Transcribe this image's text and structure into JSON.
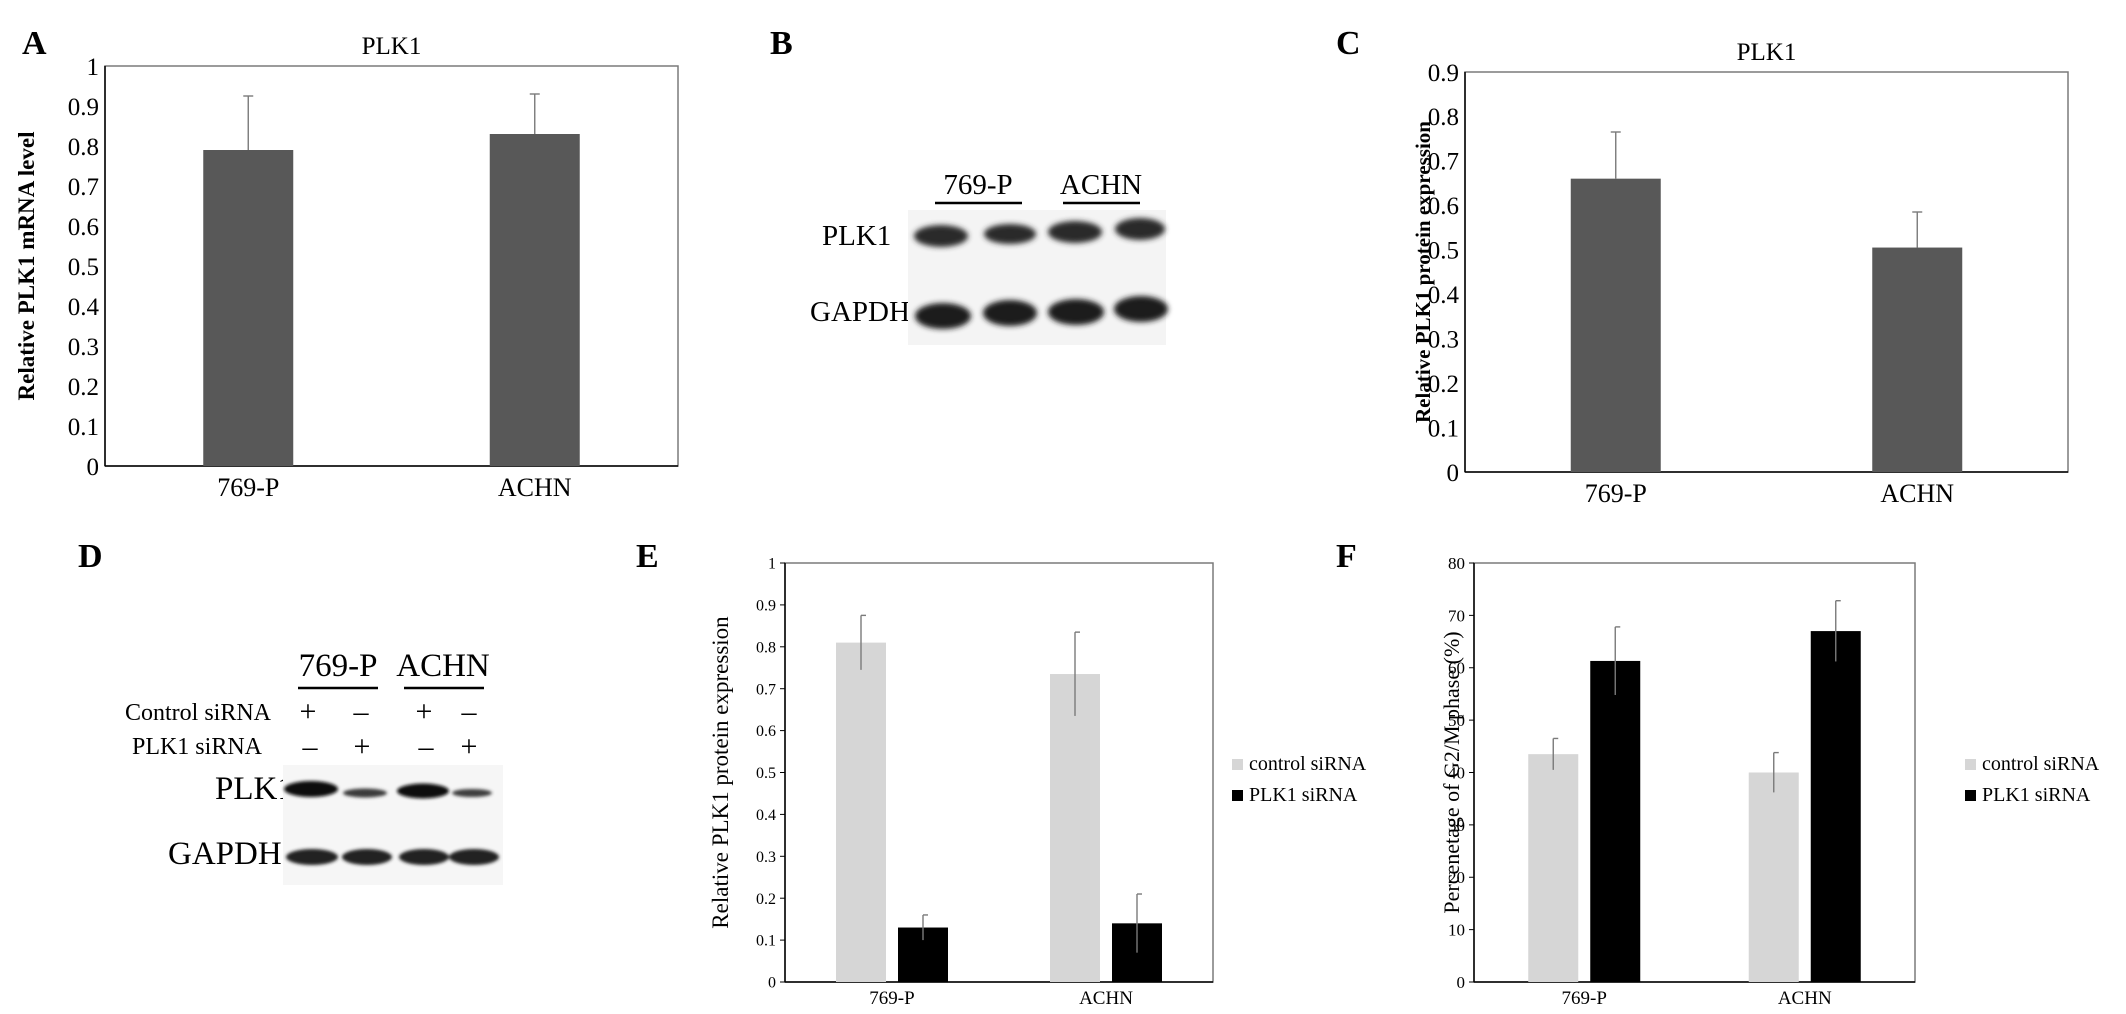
{
  "panel_letters": {
    "a": "A",
    "b": "B",
    "c": "C",
    "d": "D",
    "e": "E",
    "f": "F"
  },
  "colors": {
    "bar_dark": "#585858",
    "control": "#d6d6d6",
    "plk1": "#000000",
    "axis": "#000000",
    "errorbar": "#7a7a7a"
  },
  "blot_b": {
    "groups": [
      "769-P",
      "ACHN"
    ],
    "rows": [
      "PLK1",
      "GAPDH"
    ]
  },
  "blot_d": {
    "groups": [
      "769-P",
      "ACHN"
    ],
    "conditions": [
      {
        "label": "Control siRNA",
        "marks": [
          "+",
          "–",
          "+",
          "–"
        ]
      },
      {
        "label": "PLK1 siRNA",
        "marks": [
          "–",
          "+",
          "–",
          "+"
        ]
      }
    ],
    "rows": [
      "PLK1",
      "GAPDH"
    ]
  },
  "chart_data": [
    {
      "id": "A",
      "type": "bar",
      "title": "PLK1",
      "ylabel": "Relative PLK1 mRNA level",
      "categories": [
        "769-P",
        "ACHN"
      ],
      "values": [
        0.79,
        0.83
      ],
      "errors": [
        0.135,
        0.1
      ],
      "ylim": [
        0,
        1
      ],
      "yticks": [
        "0",
        "0.1",
        "0.2",
        "0.3",
        "0.4",
        "0.5",
        "0.6",
        "0.7",
        "0.8",
        "0.9",
        "1"
      ],
      "grid": false
    },
    {
      "id": "C",
      "type": "bar",
      "title": "PLK1",
      "ylabel": "Relative PLK1 protein expression",
      "categories": [
        "769-P",
        "ACHN"
      ],
      "values": [
        0.66,
        0.505
      ],
      "errors": [
        0.105,
        0.08
      ],
      "ylim": [
        0,
        0.9
      ],
      "yticks": [
        "0",
        "0.1",
        "0.2",
        "0.3",
        "0.4",
        "0.5",
        "0.6",
        "0.7",
        "0.8",
        "0.9"
      ],
      "grid": false
    },
    {
      "id": "E",
      "type": "bar",
      "title": "",
      "ylabel": "Relative PLK1 protein expression",
      "categories": [
        "769-P",
        "ACHN"
      ],
      "series": [
        {
          "name": "control siRNA",
          "values": [
            0.81,
            0.735
          ],
          "errors": [
            0.065,
            0.1
          ]
        },
        {
          "name": "PLK1 siRNA",
          "values": [
            0.13,
            0.14
          ],
          "errors": [
            0.03,
            0.07
          ]
        }
      ],
      "ylim": [
        0,
        1
      ],
      "yticks": [
        "0",
        "0.1",
        "0.2",
        "0.3",
        "0.4",
        "0.5",
        "0.6",
        "0.7",
        "0.8",
        "0.9",
        "1"
      ],
      "legend": "right",
      "grid": false
    },
    {
      "id": "F",
      "type": "bar",
      "title": "",
      "ylabel": "Percenetage of G2/M phase (%)",
      "categories": [
        "769-P",
        "ACHN"
      ],
      "series": [
        {
          "name": "control siRNA",
          "values": [
            43.5,
            40
          ],
          "errors": [
            3,
            3.8
          ]
        },
        {
          "name": "PLK1 siRNA",
          "values": [
            61.3,
            67
          ],
          "errors": [
            6.5,
            5.8
          ]
        }
      ],
      "ylim": [
        0,
        80
      ],
      "yticks": [
        "0",
        "10",
        "20",
        "30",
        "40",
        "50",
        "60",
        "70",
        "80"
      ],
      "legend": "right",
      "grid": false
    }
  ]
}
